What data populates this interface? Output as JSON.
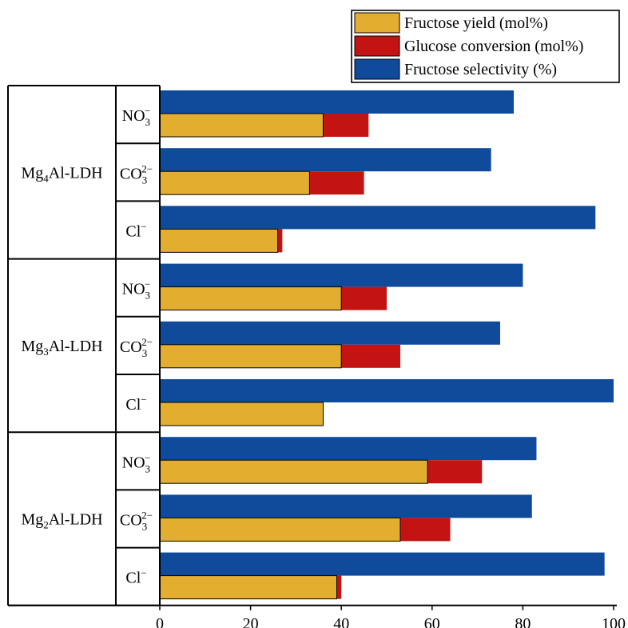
{
  "chart_data": {
    "type": "bar",
    "orientation": "horizontal",
    "xlim": [
      0,
      100
    ],
    "xticks": [
      "0",
      "20",
      "40",
      "60",
      "80",
      "100"
    ],
    "legend": {
      "position": "top-right",
      "entries": [
        {
          "key": "yield",
          "label": "Fructose yield (mol%)",
          "color": "#e3ad30"
        },
        {
          "key": "conversion",
          "label": "Glucose conversion (mol%)",
          "color": "#c31313"
        },
        {
          "key": "selectivity",
          "label": "Fructose selectivity (%)",
          "color": "#0f4a9b"
        }
      ]
    },
    "groups": [
      {
        "catalyst": {
          "pre": "Mg",
          "sub": "4",
          "post": "Al-LDH"
        },
        "rows": [
          {
            "anion": {
              "base": "NO",
              "sub": "3",
              "sup": "−"
            },
            "yield": 36,
            "conversion": 46,
            "selectivity": 78
          },
          {
            "anion": {
              "base": "CO",
              "sub": "3",
              "sup": "2−"
            },
            "yield": 33,
            "conversion": 45,
            "selectivity": 73
          },
          {
            "anion": {
              "base": "Cl",
              "sub": "",
              "sup": "−"
            },
            "yield": 26,
            "conversion": 27,
            "selectivity": 96
          }
        ]
      },
      {
        "catalyst": {
          "pre": "Mg",
          "sub": "3",
          "post": "Al-LDH"
        },
        "rows": [
          {
            "anion": {
              "base": "NO",
              "sub": "3",
              "sup": "−"
            },
            "yield": 40,
            "conversion": 50,
            "selectivity": 80
          },
          {
            "anion": {
              "base": "CO",
              "sub": "3",
              "sup": "2−"
            },
            "yield": 40,
            "conversion": 53,
            "selectivity": 75
          },
          {
            "anion": {
              "base": "Cl",
              "sub": "",
              "sup": "−"
            },
            "yield": 36,
            "conversion": 36,
            "selectivity": 100
          }
        ]
      },
      {
        "catalyst": {
          "pre": "Mg",
          "sub": "2",
          "post": "Al-LDH"
        },
        "rows": [
          {
            "anion": {
              "base": "NO",
              "sub": "3",
              "sup": "−"
            },
            "yield": 59,
            "conversion": 71,
            "selectivity": 83
          },
          {
            "anion": {
              "base": "CO",
              "sub": "3",
              "sup": "2−"
            },
            "yield": 53,
            "conversion": 64,
            "selectivity": 82
          },
          {
            "anion": {
              "base": "Cl",
              "sub": "",
              "sup": "−"
            },
            "yield": 39,
            "conversion": 40,
            "selectivity": 98
          }
        ]
      }
    ]
  }
}
